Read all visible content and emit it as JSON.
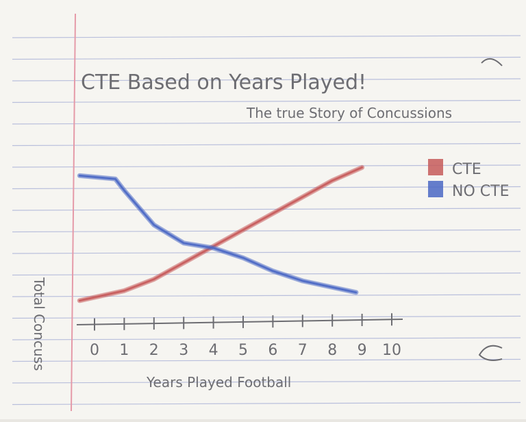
{
  "chart_data": {
    "type": "line",
    "title": "CTE Based on Years Played!",
    "subtitle": "The true Story of Concussions",
    "xlabel": "Years Played Football",
    "ylabel": "Total Concuss",
    "x_ticks": [
      "0",
      "1",
      "2",
      "3",
      "4",
      "5",
      "6",
      "7",
      "8",
      "9",
      "10"
    ],
    "xlim": [
      0,
      10
    ],
    "ylim": [
      0,
      10
    ],
    "grid": false,
    "legend_position": "right",
    "series": [
      {
        "name": "CTE",
        "color": "#c65a5a",
        "x": [
          -0.5,
          1,
          2,
          3,
          4,
          5,
          6,
          7,
          8,
          9
        ],
        "y": [
          1.3,
          1.9,
          2.6,
          3.6,
          4.6,
          5.6,
          6.6,
          7.6,
          8.6,
          9.4
        ]
      },
      {
        "name": "NO CTE",
        "color": "#4a67c4",
        "x": [
          -0.5,
          0.7,
          1,
          2,
          3,
          4,
          5,
          6,
          7,
          8.8
        ],
        "y": [
          8.9,
          8.7,
          8.0,
          5.9,
          4.8,
          4.5,
          3.9,
          3.1,
          2.5,
          1.8
        ]
      }
    ]
  }
}
